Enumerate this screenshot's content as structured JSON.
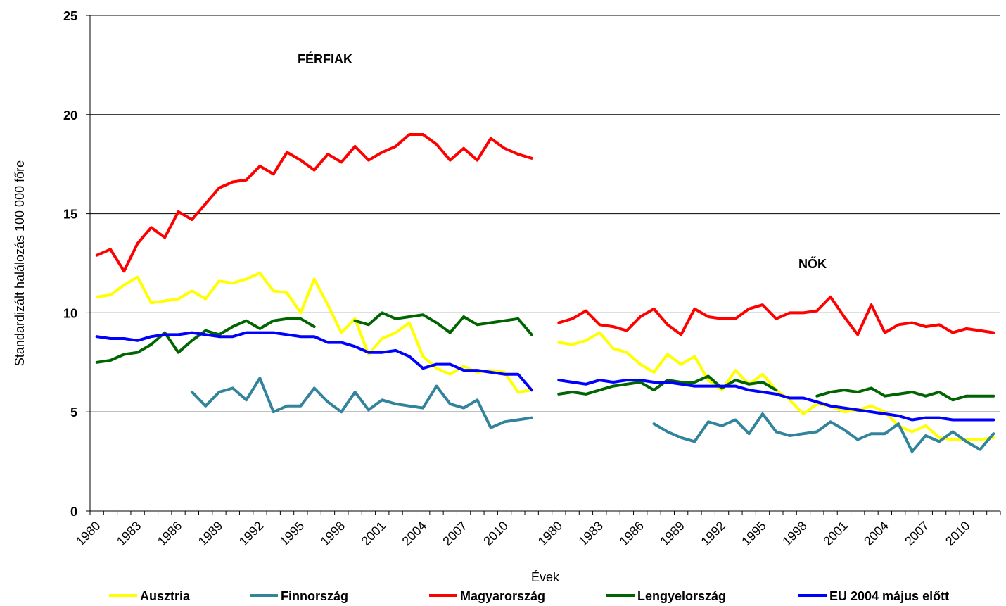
{
  "chart_data": {
    "type": "line",
    "y_label": "Standardizált halálozás 100 000 főre",
    "x_label": "Évek",
    "annotations": [
      "FÉRFIAK",
      "NŐK"
    ],
    "categories": [
      "1980",
      null,
      null,
      "1983",
      null,
      null,
      "1986",
      null,
      null,
      "1989",
      null,
      null,
      "1992",
      null,
      null,
      "1995",
      null,
      null,
      "1998",
      null,
      null,
      "2001",
      null,
      null,
      "2004",
      null,
      null,
      "2007",
      null,
      null,
      "2010",
      null,
      null,
      null,
      "1980",
      null,
      null,
      "1983",
      null,
      null,
      "1986",
      null,
      null,
      "1989",
      null,
      null,
      "1992",
      null,
      null,
      "1995",
      null,
      null,
      "1998",
      null,
      null,
      "2001",
      null,
      null,
      "2004",
      null,
      null,
      "2007",
      null,
      null,
      "2010",
      null,
      null
    ],
    "ylim": [
      0,
      25
    ],
    "yticks": [
      0,
      5,
      10,
      15,
      20,
      25
    ],
    "grid": true,
    "series": [
      {
        "name": "Ausztria",
        "color": "#ffff00",
        "values": [
          10.8,
          10.9,
          11.4,
          11.8,
          10.5,
          10.6,
          10.7,
          11.1,
          10.7,
          11.6,
          11.5,
          11.7,
          12.0,
          11.1,
          11.0,
          10.0,
          11.7,
          10.4,
          9.0,
          9.7,
          7.9,
          8.7,
          9.0,
          9.5,
          7.8,
          7.2,
          6.9,
          7.3,
          7.0,
          7.1,
          7.0,
          6.0,
          6.1,
          null,
          8.5,
          8.4,
          8.6,
          9.0,
          8.2,
          8.0,
          7.4,
          7.0,
          7.9,
          7.4,
          7.8,
          6.6,
          6.1,
          7.1,
          6.4,
          6.9,
          6.1,
          5.6,
          4.9,
          5.4,
          5.3,
          5.0,
          5.1,
          5.3,
          5.0,
          4.3,
          4.0,
          4.3,
          3.7,
          3.6,
          3.6,
          3.6,
          3.7
        ]
      },
      {
        "name": "Finnország",
        "color": "#31849b",
        "values": [
          null,
          null,
          null,
          null,
          null,
          null,
          null,
          6.0,
          5.3,
          6.0,
          6.2,
          5.6,
          6.7,
          5.0,
          5.3,
          5.3,
          6.2,
          5.5,
          5.0,
          6.0,
          5.1,
          5.6,
          5.4,
          5.3,
          5.2,
          6.3,
          5.4,
          5.2,
          5.6,
          4.2,
          4.5,
          4.6,
          4.7,
          null,
          null,
          null,
          null,
          null,
          null,
          null,
          null,
          4.4,
          4.0,
          3.7,
          3.5,
          4.5,
          4.3,
          4.6,
          3.9,
          4.9,
          4.0,
          3.8,
          3.9,
          4.0,
          4.5,
          4.1,
          3.6,
          3.9,
          3.9,
          4.4,
          3.0,
          3.8,
          3.5,
          4.0,
          3.5,
          3.1,
          3.9
        ]
      },
      {
        "name": "Magyarország",
        "color": "#ff0000",
        "values": [
          12.9,
          13.2,
          12.1,
          13.5,
          14.3,
          13.8,
          15.1,
          14.7,
          15.5,
          16.3,
          16.6,
          16.7,
          17.4,
          17.0,
          18.1,
          17.7,
          17.2,
          18.0,
          17.6,
          18.4,
          17.7,
          18.1,
          18.4,
          19.0,
          19.0,
          18.5,
          17.7,
          18.3,
          17.7,
          18.8,
          18.3,
          18.0,
          17.8,
          null,
          9.5,
          9.7,
          10.1,
          9.4,
          9.3,
          9.1,
          9.8,
          10.2,
          9.4,
          8.9,
          10.2,
          9.8,
          9.7,
          9.7,
          10.2,
          10.4,
          9.7,
          10.0,
          10.0,
          10.1,
          10.8,
          9.8,
          8.9,
          10.4,
          9.0,
          9.4,
          9.5,
          9.3,
          9.4,
          9.0,
          9.2,
          9.1,
          9.0
        ]
      },
      {
        "name": "Lengyelország",
        "color": "#006400",
        "values": [
          7.5,
          7.6,
          7.9,
          8.0,
          8.4,
          9.0,
          8.0,
          8.6,
          9.1,
          8.9,
          9.3,
          9.6,
          9.2,
          9.6,
          9.7,
          9.7,
          9.3,
          null,
          null,
          9.6,
          9.4,
          10.0,
          9.7,
          9.8,
          9.9,
          9.5,
          9.0,
          9.8,
          9.4,
          9.5,
          9.6,
          9.7,
          8.9,
          null,
          5.9,
          6.0,
          5.9,
          6.1,
          6.3,
          6.4,
          6.5,
          6.1,
          6.6,
          6.5,
          6.5,
          6.8,
          6.2,
          6.6,
          6.4,
          6.5,
          6.1,
          null,
          null,
          5.8,
          6.0,
          6.1,
          6.0,
          6.2,
          5.8,
          5.9,
          6.0,
          5.8,
          6.0,
          5.6,
          5.8,
          5.8,
          5.8
        ]
      },
      {
        "name": "EU 2004 május előtt",
        "color": "#0000ff",
        "values": [
          8.8,
          8.7,
          8.7,
          8.6,
          8.8,
          8.9,
          8.9,
          9.0,
          8.9,
          8.8,
          8.8,
          9.0,
          9.0,
          9.0,
          8.9,
          8.8,
          8.8,
          8.5,
          8.5,
          8.3,
          8.0,
          8.0,
          8.1,
          7.8,
          7.2,
          7.4,
          7.4,
          7.1,
          7.1,
          7.0,
          6.9,
          6.9,
          6.1,
          null,
          6.6,
          6.5,
          6.4,
          6.6,
          6.5,
          6.6,
          6.6,
          6.5,
          6.5,
          6.4,
          6.3,
          6.3,
          6.3,
          6.3,
          6.1,
          6.0,
          5.9,
          5.7,
          5.7,
          5.5,
          5.3,
          5.2,
          5.1,
          5.0,
          4.9,
          4.8,
          4.6,
          4.7,
          4.7,
          4.6,
          4.6,
          4.6,
          4.6
        ]
      }
    ]
  }
}
